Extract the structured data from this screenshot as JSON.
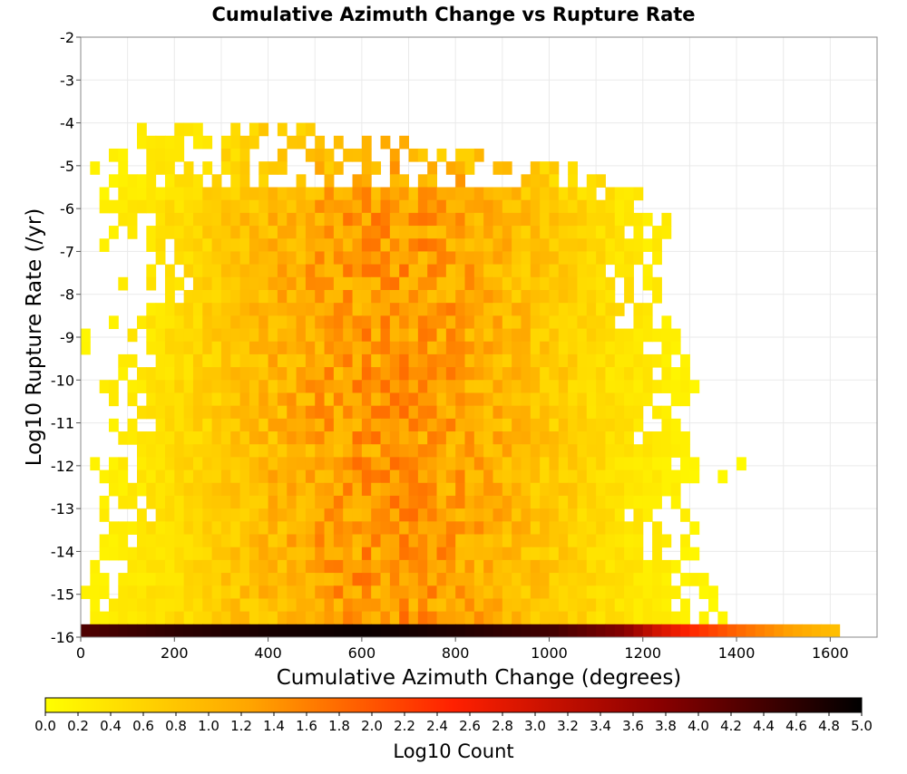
{
  "chart_data": {
    "type": "heatmap",
    "title": "Cumulative Azimuth Change vs Rupture Rate",
    "xlabel": "Cumulative Azimuth Change (degrees)",
    "ylabel": "Log10 Rupture Rate (/yr)",
    "xlim": [
      0,
      1700
    ],
    "ylim": [
      -16,
      -2
    ],
    "xticks": [
      0,
      200,
      400,
      600,
      800,
      1000,
      1200,
      1400,
      1600
    ],
    "yticks": [
      -2,
      -3,
      -4,
      -5,
      -6,
      -7,
      -8,
      -9,
      -10,
      -11,
      -12,
      -13,
      -14,
      -15,
      -16
    ],
    "grid": true,
    "x_bin_width": 20,
    "y_bin_height": 0.3,
    "colorbar": {
      "label": "Log10 Count",
      "range": [
        0,
        5
      ],
      "ticks": [
        0.0,
        0.2,
        0.4,
        0.6,
        0.8,
        1.0,
        1.2,
        1.4,
        1.6,
        1.8,
        2.0,
        2.2,
        2.4,
        2.6,
        2.8,
        3.0,
        3.2,
        3.4,
        3.6,
        3.8,
        4.0,
        4.2,
        4.4,
        4.6,
        4.8,
        5.0
      ],
      "tick_labels": [
        "0.0",
        "0.2",
        "0.4",
        "0.6",
        "0.8",
        "1.0",
        "1.2",
        "1.4",
        "1.6",
        "1.8",
        "2.0",
        "2.2",
        "2.4",
        "2.6",
        "2.8",
        "3.0",
        "3.2",
        "3.4",
        "3.6",
        "3.8",
        "4.0",
        "4.2",
        "4.4",
        "4.6",
        "4.8",
        "5.0"
      ],
      "colors": [
        "#ffff00",
        "#ffa500",
        "#ff2000",
        "#8b0000",
        "#000000"
      ]
    },
    "floor_row": {
      "y": -16,
      "x_start": 0,
      "x_end": 1620,
      "values_by_x": [
        [
          0,
          4.3
        ],
        [
          200,
          4.6
        ],
        [
          400,
          4.8
        ],
        [
          600,
          4.9
        ],
        [
          800,
          4.7
        ],
        [
          1000,
          4.4
        ],
        [
          1150,
          3.8
        ],
        [
          1220,
          3.0
        ],
        [
          1300,
          2.4
        ],
        [
          1400,
          1.8
        ],
        [
          1500,
          1.3
        ],
        [
          1600,
          0.9
        ]
      ]
    },
    "density_profile": {
      "x_center": 650,
      "y_top": -4,
      "y_bottom": -15.8,
      "peak_log10_count": 1.6,
      "x_extent_by_y": [
        [
          -4,
          60,
          560
        ],
        [
          -5,
          0,
          1150
        ],
        [
          -6,
          40,
          1260
        ],
        [
          -7,
          120,
          1230
        ],
        [
          -8,
          110,
          1220
        ],
        [
          -9,
          80,
          1270
        ],
        [
          -10,
          30,
          1340
        ],
        [
          -11,
          40,
          1260
        ],
        [
          -12,
          0,
          1360
        ],
        [
          -13,
          20,
          1220
        ],
        [
          -14,
          0,
          1320
        ],
        [
          -15,
          0,
          1340
        ]
      ]
    }
  }
}
